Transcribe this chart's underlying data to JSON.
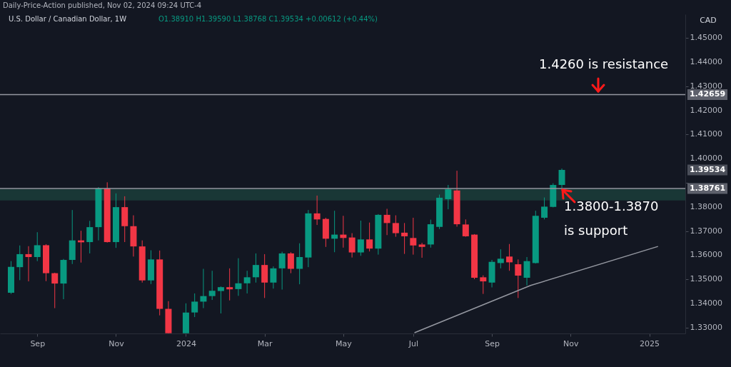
{
  "chart_data": {
    "type": "candlestick",
    "title": "U.S. Dollar / Canadian Dollar, 1W",
    "subtitle": "O1.38910 H1.39590 L1.38768 C1.39534 +0.00612 (+0.44%)",
    "ylabel": "CAD",
    "x": [
      "2023-08-14",
      "2023-08-21",
      "2023-08-28",
      "2023-09-04",
      "2023-09-11",
      "2023-09-18",
      "2023-09-25",
      "2023-10-02",
      "2023-10-09",
      "2023-10-16",
      "2023-10-23",
      "2023-10-30",
      "2023-11-06",
      "2023-11-13",
      "2023-11-20",
      "2023-11-27",
      "2023-12-04",
      "2023-12-11",
      "2023-12-18",
      "2024-01-01",
      "2024-01-08",
      "2024-01-15",
      "2024-01-22",
      "2024-01-29",
      "2024-02-05",
      "2024-02-12",
      "2024-02-19",
      "2024-02-26",
      "2024-03-04",
      "2024-03-11",
      "2024-03-18",
      "2024-03-25",
      "2024-04-01",
      "2024-04-08",
      "2024-04-15",
      "2024-04-22",
      "2024-04-29",
      "2024-05-06",
      "2024-05-13",
      "2024-05-20",
      "2024-05-27",
      "2024-06-03",
      "2024-06-10",
      "2024-06-17",
      "2024-06-24",
      "2024-07-01",
      "2024-07-08",
      "2024-07-15",
      "2024-07-22",
      "2024-07-29",
      "2024-08-05",
      "2024-08-12",
      "2024-08-19",
      "2024-08-26",
      "2024-09-02",
      "2024-09-09",
      "2024-09-16",
      "2024-09-23",
      "2024-09-30",
      "2024-10-07",
      "2024-10-14",
      "2024-10-21",
      "2024-10-28"
    ],
    "ohlc": [
      [
        1.3444,
        1.3575,
        1.3439,
        1.3551
      ],
      [
        1.355,
        1.364,
        1.3496,
        1.3604
      ],
      [
        1.3604,
        1.3637,
        1.3491,
        1.3592
      ],
      [
        1.3592,
        1.3695,
        1.3575,
        1.3641
      ],
      [
        1.3641,
        1.3645,
        1.3492,
        1.3525
      ],
      [
        1.3525,
        1.3527,
        1.338,
        1.3482
      ],
      [
        1.3482,
        1.3584,
        1.3417,
        1.358
      ],
      [
        1.358,
        1.3787,
        1.3563,
        1.3661
      ],
      [
        1.3661,
        1.3701,
        1.3569,
        1.3653
      ],
      [
        1.3654,
        1.3742,
        1.3607,
        1.3716
      ],
      [
        1.3716,
        1.3882,
        1.3661,
        1.3876
      ],
      [
        1.3876,
        1.3902,
        1.3652,
        1.3654
      ],
      [
        1.3654,
        1.3856,
        1.363,
        1.3799
      ],
      [
        1.3799,
        1.3844,
        1.3654,
        1.372
      ],
      [
        1.372,
        1.3765,
        1.3594,
        1.3636
      ],
      [
        1.3636,
        1.3661,
        1.3486,
        1.3495
      ],
      [
        1.3495,
        1.362,
        1.348,
        1.3582
      ],
      [
        1.3582,
        1.3619,
        1.335,
        1.3377
      ],
      [
        1.3377,
        1.3409,
        1.3276,
        1.3276
      ],
      [
        1.3276,
        1.34,
        1.3276,
        1.3362
      ],
      [
        1.3362,
        1.3441,
        1.3343,
        1.3407
      ],
      [
        1.3407,
        1.3543,
        1.338,
        1.343
      ],
      [
        1.343,
        1.3535,
        1.3414,
        1.3452
      ],
      [
        1.3451,
        1.347,
        1.3358,
        1.3467
      ],
      [
        1.3467,
        1.3545,
        1.3412,
        1.3458
      ],
      [
        1.3459,
        1.3587,
        1.3431,
        1.3483
      ],
      [
        1.3483,
        1.3535,
        1.3441,
        1.3508
      ],
      [
        1.3508,
        1.3607,
        1.3486,
        1.3559
      ],
      [
        1.3559,
        1.3604,
        1.3422,
        1.3486
      ],
      [
        1.3486,
        1.3553,
        1.3461,
        1.3545
      ],
      [
        1.3545,
        1.3614,
        1.3457,
        1.3607
      ],
      [
        1.3607,
        1.3612,
        1.3525,
        1.3543
      ],
      [
        1.3543,
        1.3649,
        1.3479,
        1.3592
      ],
      [
        1.359,
        1.3787,
        1.355,
        1.3773
      ],
      [
        1.3773,
        1.3847,
        1.3725,
        1.3748
      ],
      [
        1.375,
        1.3755,
        1.3634,
        1.3668
      ],
      [
        1.3668,
        1.3784,
        1.3612,
        1.3685
      ],
      [
        1.3685,
        1.3763,
        1.3631,
        1.3671
      ],
      [
        1.3673,
        1.3691,
        1.359,
        1.3611
      ],
      [
        1.3611,
        1.3743,
        1.3597,
        1.3665
      ],
      [
        1.3665,
        1.3735,
        1.3615,
        1.3627
      ],
      [
        1.3627,
        1.377,
        1.3602,
        1.3767
      ],
      [
        1.3767,
        1.3792,
        1.3683,
        1.3733
      ],
      [
        1.3733,
        1.3765,
        1.3676,
        1.3691
      ],
      [
        1.3693,
        1.3733,
        1.3605,
        1.3678
      ],
      [
        1.3671,
        1.3755,
        1.3602,
        1.364
      ],
      [
        1.3644,
        1.3651,
        1.3589,
        1.3634
      ],
      [
        1.3644,
        1.3747,
        1.3631,
        1.3728
      ],
      [
        1.3717,
        1.3851,
        1.3708,
        1.3838
      ],
      [
        1.3832,
        1.3891,
        1.379,
        1.3873
      ],
      [
        1.3868,
        1.395,
        1.3718,
        1.3728
      ],
      [
        1.3727,
        1.3748,
        1.3676,
        1.3678
      ],
      [
        1.3685,
        1.3687,
        1.35,
        1.3506
      ],
      [
        1.3508,
        1.3516,
        1.3439,
        1.3491
      ],
      [
        1.3486,
        1.358,
        1.3466,
        1.3572
      ],
      [
        1.3567,
        1.3624,
        1.3545,
        1.3585
      ],
      [
        1.3594,
        1.3646,
        1.3535,
        1.357
      ],
      [
        1.3562,
        1.3582,
        1.3422,
        1.3515
      ],
      [
        1.3506,
        1.3592,
        1.3474,
        1.3575
      ],
      [
        1.3567,
        1.3784,
        1.3565,
        1.3763
      ],
      [
        1.3755,
        1.3839,
        1.3748,
        1.3801
      ],
      [
        1.38,
        1.3898,
        1.3798,
        1.3891
      ],
      [
        1.3891,
        1.3959,
        1.38768,
        1.39534
      ]
    ],
    "colors": [
      "#089981",
      "#089981",
      "#f23645",
      "#089981",
      "#f23645",
      "#f23645",
      "#089981",
      "#089981",
      "#f23645",
      "#089981",
      "#089981",
      "#f23645",
      "#089981",
      "#f23645",
      "#f23645",
      "#f23645",
      "#089981",
      "#f23645",
      "#f23645",
      "#089981",
      "#089981",
      "#089981",
      "#089981",
      "#089981",
      "#f23645",
      "#089981",
      "#089981",
      "#089981",
      "#f23645",
      "#089981",
      "#089981",
      "#f23645",
      "#089981",
      "#089981",
      "#f23645",
      "#f23645",
      "#089981",
      "#f23645",
      "#f23645",
      "#089981",
      "#f23645",
      "#089981",
      "#f23645",
      "#f23645",
      "#f23645",
      "#f23645",
      "#f23645",
      "#089981",
      "#089981",
      "#089981",
      "#f23645",
      "#f23645",
      "#f23645",
      "#f23645",
      "#089981",
      "#089981",
      "#f23645",
      "#f23645",
      "#089981",
      "#089981",
      "#089981",
      "#089981",
      "#089981"
    ],
    "series": [
      {
        "type": "line",
        "color": "#9598a1",
        "x": [
          "2024-07-02",
          "2024-10-03",
          "2025-01-13"
        ],
        "values": [
          1.3278,
          1.3474,
          1.3636
        ]
      }
    ],
    "xlim": [
      "2023-08-08",
      "2025-02-01"
    ],
    "xticks": [
      {
        "value": "2023-09-04",
        "label": "Sep"
      },
      {
        "value": "2023-11-06",
        "label": "Nov"
      },
      {
        "value": "2024-01-01",
        "label": "2024"
      },
      {
        "value": "2024-03-04",
        "label": "Mar"
      },
      {
        "value": "2024-05-06",
        "label": "May"
      },
      {
        "value": "2024-07-01",
        "label": "Jul"
      },
      {
        "value": "2024-09-02",
        "label": "Sep"
      },
      {
        "value": "2024-11-04",
        "label": "Nov"
      },
      {
        "value": "2025-01-06",
        "label": "2025"
      }
    ],
    "ylim": [
      1.3275,
      1.4599
    ],
    "yticks": [
      {
        "value": 1.33,
        "label": "1.33000"
      },
      {
        "value": 1.34,
        "label": "1.34000"
      },
      {
        "value": 1.35,
        "label": "1.35000"
      },
      {
        "value": 1.36,
        "label": "1.36000"
      },
      {
        "value": 1.37,
        "label": "1.37000"
      },
      {
        "value": 1.38,
        "label": "1.38000"
      },
      {
        "value": 1.39,
        "label": null
      },
      {
        "value": 1.4,
        "label": "1.40000"
      },
      {
        "value": 1.41,
        "label": "1.41000"
      },
      {
        "value": 1.42,
        "label": "1.42000"
      },
      {
        "value": 1.43,
        "label": "1.43000"
      },
      {
        "value": 1.44,
        "label": "1.44000"
      },
      {
        "value": 1.45,
        "label": "1.45000"
      }
    ],
    "ref_lines": [
      {
        "axis": "y",
        "value": 1.42659,
        "label": "1.42659",
        "color": "#9598a1"
      },
      {
        "axis": "y",
        "value": 1.38761,
        "label": "1.38761",
        "color": "#9598a1"
      }
    ],
    "bands": [
      {
        "axis": "y",
        "from": 1.3827,
        "to": 1.3873,
        "label": null,
        "color": "#1b3d3a"
      }
    ],
    "annotations": [
      "Daily-Price-Action published, Nov 02, 2024 09:24 UTC-4",
      "1.4260 is resistance",
      "1.3800-1.3870\nis support",
      "1.39534"
    ],
    "grid": false
  }
}
